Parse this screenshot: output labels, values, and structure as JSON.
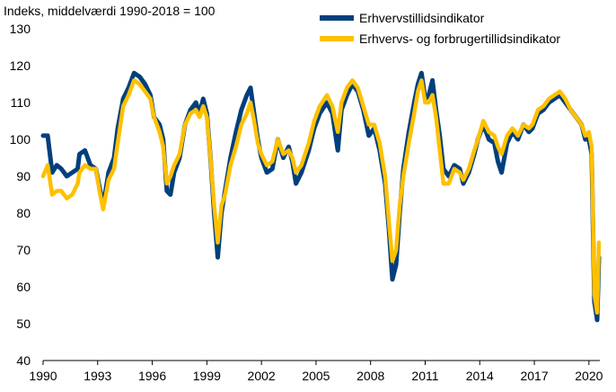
{
  "chart_data": {
    "type": "line",
    "title": "",
    "ylabel": "Indeks, middelværdi 1990-2018 = 100",
    "xlabel": "",
    "xlim": [
      1990,
      2020.6
    ],
    "ylim": [
      40,
      130
    ],
    "y_ticks": [
      40,
      50,
      60,
      70,
      80,
      90,
      100,
      110,
      120,
      130
    ],
    "x_ticks": [
      1990,
      1993,
      1996,
      1999,
      2002,
      2005,
      2008,
      2011,
      2014,
      2017,
      2020
    ],
    "grid": false,
    "legend_position": "top-right",
    "series": [
      {
        "name": "Erhvervstillidsindikator",
        "color": "#003f7d",
        "points": [
          [
            1990.0,
            101
          ],
          [
            1990.25,
            101
          ],
          [
            1990.5,
            91
          ],
          [
            1990.75,
            93
          ],
          [
            1991.0,
            92
          ],
          [
            1991.3,
            90
          ],
          [
            1991.6,
            91
          ],
          [
            1991.9,
            92
          ],
          [
            1992.0,
            96
          ],
          [
            1992.3,
            97
          ],
          [
            1992.6,
            93
          ],
          [
            1992.9,
            92
          ],
          [
            1993.1,
            87
          ],
          [
            1993.3,
            82
          ],
          [
            1993.6,
            91
          ],
          [
            1993.9,
            95
          ],
          [
            1994.1,
            103
          ],
          [
            1994.4,
            111
          ],
          [
            1994.7,
            114
          ],
          [
            1995.0,
            118
          ],
          [
            1995.3,
            117
          ],
          [
            1995.6,
            115
          ],
          [
            1995.9,
            112
          ],
          [
            1996.1,
            106
          ],
          [
            1996.4,
            104
          ],
          [
            1996.6,
            100
          ],
          [
            1996.8,
            86
          ],
          [
            1997.0,
            85
          ],
          [
            1997.2,
            91
          ],
          [
            1997.5,
            95
          ],
          [
            1997.8,
            104
          ],
          [
            1998.1,
            108
          ],
          [
            1998.4,
            110
          ],
          [
            1998.6,
            107
          ],
          [
            1998.8,
            111
          ],
          [
            1999.0,
            107
          ],
          [
            1999.2,
            95
          ],
          [
            1999.4,
            80
          ],
          [
            1999.6,
            68
          ],
          [
            1999.8,
            80
          ],
          [
            2000.0,
            86
          ],
          [
            2000.3,
            95
          ],
          [
            2000.6,
            102
          ],
          [
            2000.9,
            108
          ],
          [
            2001.2,
            112
          ],
          [
            2001.4,
            114
          ],
          [
            2001.6,
            107
          ],
          [
            2001.8,
            100
          ],
          [
            2002.0,
            95
          ],
          [
            2002.3,
            91
          ],
          [
            2002.6,
            92
          ],
          [
            2002.9,
            100
          ],
          [
            2003.2,
            95
          ],
          [
            2003.5,
            98
          ],
          [
            2003.7,
            94
          ],
          [
            2003.9,
            88
          ],
          [
            2004.2,
            91
          ],
          [
            2004.6,
            97
          ],
          [
            2004.9,
            103
          ],
          [
            2005.2,
            107
          ],
          [
            2005.6,
            110
          ],
          [
            2005.9,
            107
          ],
          [
            2006.2,
            97
          ],
          [
            2006.4,
            108
          ],
          [
            2006.7,
            112
          ],
          [
            2007.0,
            115
          ],
          [
            2007.3,
            113
          ],
          [
            2007.6,
            108
          ],
          [
            2007.9,
            101
          ],
          [
            2008.2,
            103
          ],
          [
            2008.5,
            97
          ],
          [
            2008.8,
            88
          ],
          [
            2009.0,
            76
          ],
          [
            2009.2,
            62
          ],
          [
            2009.4,
            66
          ],
          [
            2009.6,
            80
          ],
          [
            2009.8,
            92
          ],
          [
            2010.1,
            102
          ],
          [
            2010.4,
            110
          ],
          [
            2010.6,
            115
          ],
          [
            2010.8,
            118
          ],
          [
            2011.0,
            111
          ],
          [
            2011.2,
            112
          ],
          [
            2011.4,
            116
          ],
          [
            2011.6,
            108
          ],
          [
            2011.8,
            101
          ],
          [
            2012.0,
            92
          ],
          [
            2012.3,
            90
          ],
          [
            2012.6,
            93
          ],
          [
            2012.9,
            92
          ],
          [
            2013.1,
            88
          ],
          [
            2013.4,
            91
          ],
          [
            2013.7,
            96
          ],
          [
            2013.9,
            100
          ],
          [
            2014.2,
            104
          ],
          [
            2014.5,
            100
          ],
          [
            2014.8,
            99
          ],
          [
            2015.0,
            94
          ],
          [
            2015.2,
            91
          ],
          [
            2015.5,
            99
          ],
          [
            2015.8,
            102
          ],
          [
            2016.1,
            100
          ],
          [
            2016.4,
            104
          ],
          [
            2016.7,
            102
          ],
          [
            2016.9,
            103
          ],
          [
            2017.2,
            107
          ],
          [
            2017.5,
            108
          ],
          [
            2017.8,
            110
          ],
          [
            2018.1,
            111
          ],
          [
            2018.4,
            112
          ],
          [
            2018.7,
            110
          ],
          [
            2019.0,
            108
          ],
          [
            2019.3,
            106
          ],
          [
            2019.6,
            104
          ],
          [
            2019.8,
            100
          ],
          [
            2020.0,
            100
          ],
          [
            2020.15,
            96
          ],
          [
            2020.3,
            56
          ],
          [
            2020.45,
            51
          ],
          [
            2020.55,
            68
          ]
        ]
      },
      {
        "name": "Erhvervs- og forbrugertillidsindikator",
        "color": "#ffc000",
        "points": [
          [
            1990.0,
            90
          ],
          [
            1990.25,
            93
          ],
          [
            1990.5,
            85
          ],
          [
            1990.75,
            86
          ],
          [
            1991.0,
            86
          ],
          [
            1991.3,
            84
          ],
          [
            1991.6,
            85
          ],
          [
            1991.9,
            88
          ],
          [
            1992.0,
            91
          ],
          [
            1992.3,
            93
          ],
          [
            1992.6,
            92
          ],
          [
            1992.9,
            92
          ],
          [
            1993.1,
            86
          ],
          [
            1993.3,
            81
          ],
          [
            1993.6,
            89
          ],
          [
            1993.9,
            92
          ],
          [
            1994.1,
            99
          ],
          [
            1994.4,
            109
          ],
          [
            1994.7,
            112
          ],
          [
            1995.0,
            116
          ],
          [
            1995.3,
            115
          ],
          [
            1995.6,
            113
          ],
          [
            1995.9,
            111
          ],
          [
            1996.1,
            106
          ],
          [
            1996.4,
            102
          ],
          [
            1996.6,
            98
          ],
          [
            1996.8,
            88
          ],
          [
            1997.0,
            90
          ],
          [
            1997.2,
            93
          ],
          [
            1997.5,
            96
          ],
          [
            1997.8,
            104
          ],
          [
            1998.1,
            107
          ],
          [
            1998.4,
            108
          ],
          [
            1998.6,
            106
          ],
          [
            1998.8,
            109
          ],
          [
            1999.0,
            106
          ],
          [
            1999.2,
            95
          ],
          [
            1999.4,
            82
          ],
          [
            1999.6,
            72
          ],
          [
            1999.8,
            82
          ],
          [
            2000.0,
            85
          ],
          [
            2000.3,
            93
          ],
          [
            2000.6,
            98
          ],
          [
            2000.9,
            104
          ],
          [
            2001.2,
            107
          ],
          [
            2001.4,
            110
          ],
          [
            2001.6,
            105
          ],
          [
            2001.8,
            99
          ],
          [
            2002.0,
            96
          ],
          [
            2002.3,
            93
          ],
          [
            2002.6,
            94
          ],
          [
            2002.9,
            100
          ],
          [
            2003.2,
            96
          ],
          [
            2003.5,
            97
          ],
          [
            2003.7,
            95
          ],
          [
            2003.9,
            91
          ],
          [
            2004.2,
            93
          ],
          [
            2004.6,
            99
          ],
          [
            2004.9,
            105
          ],
          [
            2005.2,
            109
          ],
          [
            2005.6,
            112
          ],
          [
            2005.9,
            109
          ],
          [
            2006.2,
            102
          ],
          [
            2006.4,
            110
          ],
          [
            2006.7,
            114
          ],
          [
            2007.0,
            116
          ],
          [
            2007.3,
            114
          ],
          [
            2007.6,
            109
          ],
          [
            2007.9,
            104
          ],
          [
            2008.2,
            104
          ],
          [
            2008.5,
            99
          ],
          [
            2008.8,
            90
          ],
          [
            2009.0,
            78
          ],
          [
            2009.2,
            67
          ],
          [
            2009.4,
            70
          ],
          [
            2009.6,
            82
          ],
          [
            2009.8,
            90
          ],
          [
            2010.1,
            99
          ],
          [
            2010.4,
            107
          ],
          [
            2010.6,
            113
          ],
          [
            2010.8,
            116
          ],
          [
            2011.0,
            110
          ],
          [
            2011.2,
            110
          ],
          [
            2011.4,
            112
          ],
          [
            2011.6,
            106
          ],
          [
            2011.8,
            97
          ],
          [
            2012.0,
            88
          ],
          [
            2012.3,
            88
          ],
          [
            2012.6,
            92
          ],
          [
            2012.9,
            91
          ],
          [
            2013.1,
            89
          ],
          [
            2013.4,
            92
          ],
          [
            2013.7,
            97
          ],
          [
            2013.9,
            100
          ],
          [
            2014.2,
            105
          ],
          [
            2014.5,
            102
          ],
          [
            2014.8,
            101
          ],
          [
            2015.0,
            98
          ],
          [
            2015.2,
            96
          ],
          [
            2015.5,
            101
          ],
          [
            2015.8,
            103
          ],
          [
            2016.1,
            101
          ],
          [
            2016.4,
            104
          ],
          [
            2016.7,
            103
          ],
          [
            2016.9,
            104
          ],
          [
            2017.2,
            108
          ],
          [
            2017.5,
            109
          ],
          [
            2017.8,
            111
          ],
          [
            2018.1,
            112
          ],
          [
            2018.4,
            113
          ],
          [
            2018.7,
            111
          ],
          [
            2019.0,
            108
          ],
          [
            2019.3,
            106
          ],
          [
            2019.6,
            104
          ],
          [
            2019.8,
            101
          ],
          [
            2020.0,
            102
          ],
          [
            2020.15,
            98
          ],
          [
            2020.3,
            58
          ],
          [
            2020.45,
            53
          ],
          [
            2020.55,
            72
          ]
        ]
      }
    ]
  }
}
